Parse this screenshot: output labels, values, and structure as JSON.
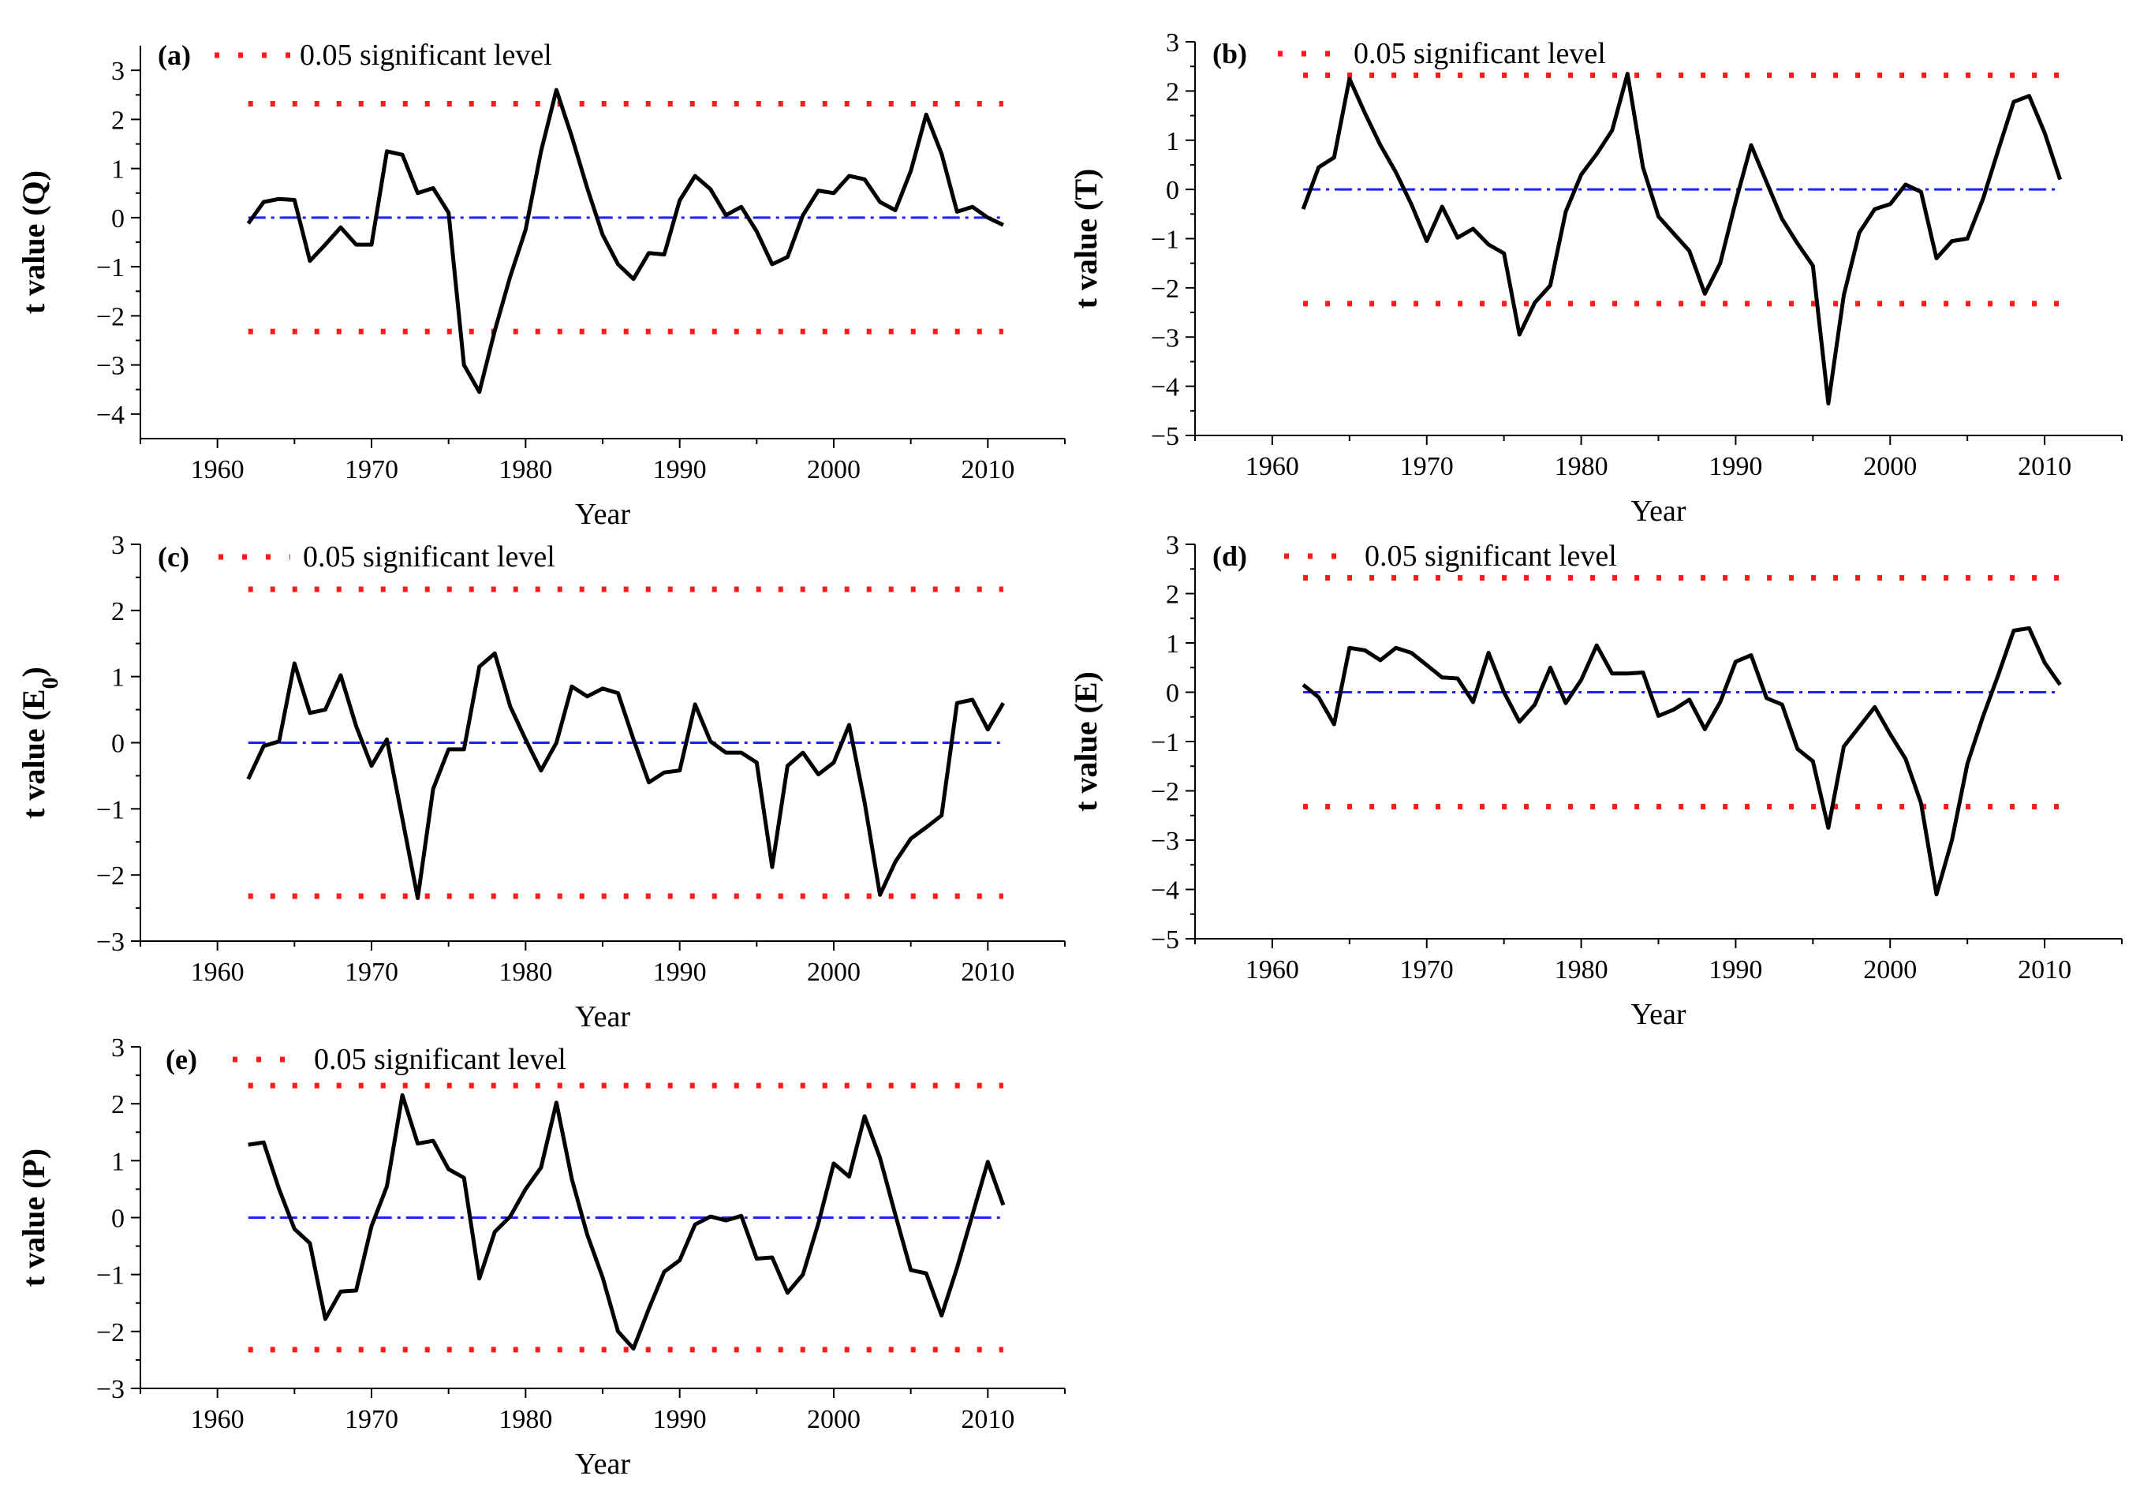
{
  "figure": {
    "sig_label": "0.05 significant level",
    "x_label": "Year",
    "sig_level": 2.32
  },
  "chart_data": [
    {
      "type": "line",
      "tag": "(a)",
      "ylabel": "t value  (Q)",
      "xlabel": "Year",
      "xlim": [
        1955,
        2015
      ],
      "ylim": [
        -4.5,
        3.5
      ],
      "xticks": [
        1960,
        1970,
        1980,
        1990,
        2000,
        2010
      ],
      "yticks": [
        -4,
        -3,
        -2,
        -1,
        0,
        1,
        2,
        3
      ],
      "x": [
        1962,
        1963,
        1964,
        1965,
        1966,
        1967,
        1968,
        1969,
        1970,
        1971,
        1972,
        1973,
        1974,
        1975,
        1976,
        1977,
        1978,
        1979,
        1980,
        1981,
        1982,
        1983,
        1984,
        1985,
        1986,
        1987,
        1988,
        1989,
        1990,
        1991,
        1992,
        1993,
        1994,
        1995,
        1996,
        1997,
        1998,
        1999,
        2000,
        2001,
        2002,
        2003,
        2004,
        2005,
        2006,
        2007,
        2008,
        2009,
        2010,
        2011
      ],
      "values": [
        -0.12,
        0.32,
        0.38,
        0.36,
        -0.88,
        -0.55,
        -0.2,
        -0.55,
        -0.55,
        1.35,
        1.28,
        0.5,
        0.6,
        0.1,
        -3.0,
        -3.55,
        -2.3,
        -1.2,
        -0.25,
        1.35,
        2.6,
        1.65,
        0.6,
        -0.35,
        -0.95,
        -1.25,
        -0.72,
        -0.75,
        0.35,
        0.85,
        0.58,
        0.05,
        0.22,
        -0.28,
        -0.95,
        -0.8,
        0.05,
        0.55,
        0.5,
        0.85,
        0.78,
        0.32,
        0.15,
        0.95,
        2.1,
        1.3,
        0.12,
        0.22,
        0.0,
        -0.15
      ],
      "sig_upper": 2.32,
      "sig_lower": -2.32,
      "zero_line": 0
    },
    {
      "type": "line",
      "tag": "(b)",
      "ylabel": "t value (T)",
      "xlabel": "Year",
      "xlim": [
        1955,
        2015
      ],
      "ylim": [
        -5,
        3
      ],
      "xticks": [
        1960,
        1970,
        1980,
        1990,
        2000,
        2010
      ],
      "yticks": [
        -5,
        -4,
        -3,
        -2,
        -1,
        0,
        1,
        2,
        3
      ],
      "x": [
        1962,
        1963,
        1964,
        1965,
        1966,
        1967,
        1968,
        1969,
        1970,
        1971,
        1972,
        1973,
        1974,
        1975,
        1976,
        1977,
        1978,
        1979,
        1980,
        1981,
        1982,
        1983,
        1984,
        1985,
        1986,
        1987,
        1988,
        1989,
        1990,
        1991,
        1992,
        1993,
        1994,
        1995,
        1996,
        1997,
        1998,
        1999,
        2000,
        2001,
        2002,
        2003,
        2004,
        2005,
        2006,
        2007,
        2008,
        2009,
        2010,
        2011
      ],
      "values": [
        -0.4,
        0.45,
        0.65,
        2.25,
        1.55,
        0.9,
        0.35,
        -0.3,
        -1.05,
        -0.35,
        -0.98,
        -0.8,
        -1.12,
        -1.3,
        -2.95,
        -2.3,
        -1.95,
        -0.45,
        0.3,
        0.72,
        1.2,
        2.35,
        0.45,
        -0.55,
        -0.9,
        -1.25,
        -2.12,
        -1.5,
        -0.25,
        0.9,
        0.15,
        -0.6,
        -1.1,
        -1.55,
        -4.35,
        -2.15,
        -0.88,
        -0.4,
        -0.3,
        0.1,
        -0.05,
        -1.4,
        -1.05,
        -1.0,
        -0.2,
        0.8,
        1.78,
        1.9,
        1.15,
        0.2
      ],
      "sig_upper": 2.32,
      "sig_lower": -2.32,
      "zero_line": 0
    },
    {
      "type": "line",
      "tag": "(c)",
      "ylabel": "t value (E0)",
      "xlabel": "Year",
      "xlim": [
        1955,
        2015
      ],
      "ylim": [
        -3,
        3
      ],
      "xticks": [
        1960,
        1970,
        1980,
        1990,
        2000,
        2010
      ],
      "yticks": [
        -3,
        -2,
        -1,
        0,
        1,
        2,
        3
      ],
      "x": [
        1962,
        1963,
        1964,
        1965,
        1966,
        1967,
        1968,
        1969,
        1970,
        1971,
        1972,
        1973,
        1974,
        1975,
        1976,
        1977,
        1978,
        1979,
        1980,
        1981,
        1982,
        1983,
        1984,
        1985,
        1986,
        1987,
        1988,
        1989,
        1990,
        1991,
        1992,
        1993,
        1994,
        1995,
        1996,
        1997,
        1998,
        1999,
        2000,
        2001,
        2002,
        2003,
        2004,
        2005,
        2006,
        2007,
        2008,
        2009,
        2010,
        2011
      ],
      "values": [
        -0.55,
        -0.05,
        0.02,
        1.2,
        0.45,
        0.5,
        1.02,
        0.25,
        -0.35,
        0.05,
        -1.15,
        -2.35,
        -0.7,
        -0.1,
        -0.1,
        1.15,
        1.35,
        0.55,
        0.05,
        -0.42,
        0.0,
        0.85,
        0.7,
        0.82,
        0.75,
        0.05,
        -0.6,
        -0.45,
        -0.42,
        0.58,
        0.02,
        -0.15,
        -0.15,
        -0.3,
        -1.88,
        -0.35,
        -0.15,
        -0.48,
        -0.3,
        0.27,
        -0.9,
        -2.3,
        -1.8,
        -1.45,
        -1.28,
        -1.1,
        0.6,
        0.65,
        0.2,
        0.6
      ],
      "sig_upper": 2.32,
      "sig_lower": -2.32,
      "zero_line": 0
    },
    {
      "type": "line",
      "tag": "(d)",
      "ylabel": "t value (E)",
      "xlabel": "Year",
      "xlim": [
        1955,
        2015
      ],
      "ylim": [
        -5,
        3
      ],
      "xticks": [
        1960,
        1970,
        1980,
        1990,
        2000,
        2010
      ],
      "yticks": [
        -5,
        -4,
        -3,
        -2,
        -1,
        0,
        1,
        2,
        3
      ],
      "x": [
        1962,
        1963,
        1964,
        1965,
        1966,
        1967,
        1968,
        1969,
        1970,
        1971,
        1972,
        1973,
        1974,
        1975,
        1976,
        1977,
        1978,
        1979,
        1980,
        1981,
        1982,
        1983,
        1984,
        1985,
        1986,
        1987,
        1988,
        1989,
        1990,
        1991,
        1992,
        1993,
        1994,
        1995,
        1996,
        1997,
        1998,
        1999,
        2000,
        2001,
        2002,
        2003,
        2004,
        2005,
        2006,
        2007,
        2008,
        2009,
        2010,
        2011
      ],
      "values": [
        0.15,
        -0.1,
        -0.65,
        0.9,
        0.85,
        0.65,
        0.9,
        0.8,
        0.55,
        0.3,
        0.28,
        -0.2,
        0.8,
        0.0,
        -0.6,
        -0.25,
        0.5,
        -0.22,
        0.25,
        0.95,
        0.38,
        0.38,
        0.4,
        -0.48,
        -0.35,
        -0.15,
        -0.75,
        -0.2,
        0.62,
        0.75,
        -0.12,
        -0.25,
        -1.15,
        -1.4,
        -2.75,
        -1.1,
        -0.7,
        -0.3,
        -0.85,
        -1.35,
        -2.25,
        -4.1,
        -3.0,
        -1.45,
        -0.5,
        0.35,
        1.25,
        1.3,
        0.6,
        0.15
      ],
      "sig_upper": 2.32,
      "sig_lower": -2.32,
      "zero_line": 0
    },
    {
      "type": "line",
      "tag": "(e)",
      "ylabel": "t value (P)",
      "xlabel": "Year",
      "xlim": [
        1955,
        2015
      ],
      "ylim": [
        -3,
        3
      ],
      "xticks": [
        1960,
        1970,
        1980,
        1990,
        2000,
        2010
      ],
      "yticks": [
        -3,
        -2,
        -1,
        0,
        1,
        2,
        3
      ],
      "x": [
        1962,
        1963,
        1964,
        1965,
        1966,
        1967,
        1968,
        1969,
        1970,
        1971,
        1972,
        1973,
        1974,
        1975,
        1976,
        1977,
        1978,
        1979,
        1980,
        1981,
        1982,
        1983,
        1984,
        1985,
        1986,
        1987,
        1988,
        1989,
        1990,
        1991,
        1992,
        1993,
        1994,
        1995,
        1996,
        1997,
        1998,
        1999,
        2000,
        2001,
        2002,
        2003,
        2004,
        2005,
        2006,
        2007,
        2008,
        2009,
        2010,
        2011
      ],
      "values": [
        1.28,
        1.32,
        0.5,
        -0.2,
        -0.45,
        -1.78,
        -1.3,
        -1.28,
        -0.15,
        0.55,
        2.15,
        1.3,
        1.35,
        0.85,
        0.7,
        -1.07,
        -0.25,
        0.02,
        0.5,
        0.88,
        2.02,
        0.68,
        -0.3,
        -1.05,
        -2.0,
        -2.3,
        -1.6,
        -0.95,
        -0.75,
        -0.12,
        0.02,
        -0.05,
        0.03,
        -0.72,
        -0.7,
        -1.32,
        -1.0,
        -0.1,
        0.95,
        0.72,
        1.78,
        1.05,
        0.05,
        -0.92,
        -0.98,
        -1.72,
        -0.88,
        0.05,
        0.98,
        0.22
      ],
      "sig_upper": 2.32,
      "sig_lower": -2.32,
      "zero_line": 0
    }
  ]
}
